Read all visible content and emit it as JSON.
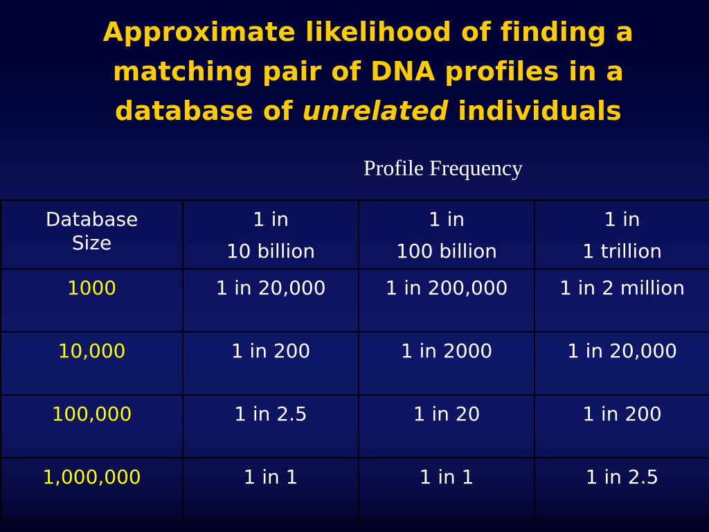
{
  "slide": {
    "title_part1": "Approximate likelihood of finding a matching pair of DNA profiles in a database of",
    "title_emphasis": "unrelated",
    "title_part2": "individuals",
    "subtitle": "Profile Frequency"
  },
  "table": {
    "header": {
      "db_size_line1": "Database",
      "db_size_line2": "Size",
      "columns": [
        {
          "line1": "1 in",
          "line2": "10 billion"
        },
        {
          "line1": "1 in",
          "line2": "100 billion"
        },
        {
          "line1": "1 in",
          "line2": "1 trillion"
        }
      ]
    },
    "rows": [
      {
        "size": "1000",
        "values": [
          "1 in 20,000",
          "1 in 200,000",
          "1 in 2 million"
        ]
      },
      {
        "size": "10,000",
        "values": [
          "1 in 200",
          "1 in 2000",
          "1 in 20,000"
        ]
      },
      {
        "size": "100,000",
        "values": [
          "1 in 2.5",
          "1 in 20",
          "1 in 200"
        ]
      },
      {
        "size": "1,000,000",
        "values": [
          "1 in 1",
          "1 in 1",
          "1 in 2.5"
        ]
      }
    ]
  },
  "colors": {
    "title": "#ffcc00",
    "row_label": "#ffff00",
    "cell_text": "#ffffff",
    "background": "#000033",
    "grid_line": "#000000"
  }
}
